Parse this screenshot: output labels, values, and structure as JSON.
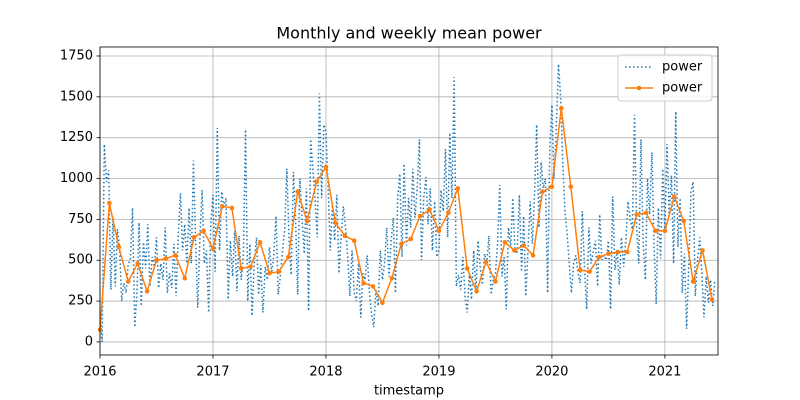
{
  "chart_data": {
    "type": "line",
    "title": "Monthly and weekly mean power",
    "x_label": "timestamp",
    "xlim": [
      2016,
      2021.47
    ],
    "xticks": [
      2016,
      2017,
      2018,
      2019,
      2020,
      2021
    ],
    "ylim": [
      -80,
      1805
    ],
    "yticks": [
      0,
      250,
      500,
      750,
      1000,
      1250,
      1500,
      1750
    ],
    "grid": true,
    "legend": "upper right",
    "series": [
      {
        "name": "power",
        "color": "#1f77b4",
        "linestyle": "dotted",
        "x": [
          2016,
          2016.019,
          2016.038,
          2016.058,
          2016.077,
          2016.096,
          2016.115,
          2016.135,
          2016.154,
          2016.173,
          2016.192,
          2016.212,
          2016.231,
          2016.25,
          2016.269,
          2016.288,
          2016.308,
          2016.327,
          2016.346,
          2016.365,
          2016.385,
          2016.404,
          2016.423,
          2016.442,
          2016.462,
          2016.481,
          2016.5,
          2016.519,
          2016.538,
          2016.558,
          2016.577,
          2016.596,
          2016.615,
          2016.635,
          2016.654,
          2016.673,
          2016.692,
          2016.712,
          2016.731,
          2016.75,
          2016.769,
          2016.788,
          2016.808,
          2016.827,
          2016.846,
          2016.865,
          2016.885,
          2016.904,
          2016.923,
          2016.942,
          2016.962,
          2016.981,
          2017,
          2017.019,
          2017.038,
          2017.058,
          2017.077,
          2017.096,
          2017.115,
          2017.135,
          2017.154,
          2017.173,
          2017.192,
          2017.212,
          2017.231,
          2017.25,
          2017.269,
          2017.288,
          2017.308,
          2017.327,
          2017.346,
          2017.365,
          2017.385,
          2017.404,
          2017.423,
          2017.442,
          2017.462,
          2017.481,
          2017.5,
          2017.519,
          2017.538,
          2017.558,
          2017.577,
          2017.596,
          2017.615,
          2017.635,
          2017.654,
          2017.673,
          2017.692,
          2017.712,
          2017.731,
          2017.75,
          2017.769,
          2017.788,
          2017.808,
          2017.827,
          2017.846,
          2017.865,
          2017.885,
          2017.904,
          2017.923,
          2017.942,
          2017.962,
          2017.981,
          2018,
          2018.019,
          2018.038,
          2018.058,
          2018.077,
          2018.096,
          2018.115,
          2018.135,
          2018.154,
          2018.173,
          2018.192,
          2018.212,
          2018.231,
          2018.25,
          2018.269,
          2018.288,
          2018.308,
          2018.327,
          2018.346,
          2018.365,
          2018.385,
          2018.404,
          2018.423,
          2018.442,
          2018.462,
          2018.481,
          2018.5,
          2018.519,
          2018.538,
          2018.558,
          2018.577,
          2018.596,
          2018.615,
          2018.635,
          2018.654,
          2018.673,
          2018.692,
          2018.712,
          2018.731,
          2018.75,
          2018.769,
          2018.788,
          2018.808,
          2018.827,
          2018.846,
          2018.865,
          2018.885,
          2018.904,
          2018.923,
          2018.942,
          2018.962,
          2018.981,
          2019,
          2019.019,
          2019.038,
          2019.058,
          2019.077,
          2019.096,
          2019.115,
          2019.135,
          2019.154,
          2019.173,
          2019.192,
          2019.212,
          2019.231,
          2019.25,
          2019.269,
          2019.288,
          2019.308,
          2019.327,
          2019.346,
          2019.365,
          2019.385,
          2019.404,
          2019.423,
          2019.442,
          2019.462,
          2019.481,
          2019.5,
          2019.519,
          2019.538,
          2019.558,
          2019.577,
          2019.596,
          2019.615,
          2019.635,
          2019.654,
          2019.673,
          2019.692,
          2019.712,
          2019.731,
          2019.75,
          2019.769,
          2019.788,
          2019.808,
          2019.827,
          2019.846,
          2019.865,
          2019.885,
          2019.904,
          2019.923,
          2019.942,
          2019.962,
          2019.981,
          2020,
          2020.019,
          2020.038,
          2020.058,
          2020.077,
          2020.096,
          2020.115,
          2020.135,
          2020.154,
          2020.173,
          2020.192,
          2020.212,
          2020.231,
          2020.25,
          2020.269,
          2020.288,
          2020.308,
          2020.327,
          2020.346,
          2020.365,
          2020.385,
          2020.404,
          2020.423,
          2020.442,
          2020.462,
          2020.481,
          2020.5,
          2020.519,
          2020.538,
          2020.558,
          2020.577,
          2020.596,
          2020.615,
          2020.635,
          2020.654,
          2020.673,
          2020.692,
          2020.712,
          2020.731,
          2020.75,
          2020.769,
          2020.788,
          2020.808,
          2020.827,
          2020.846,
          2020.865,
          2020.885,
          2020.904,
          2020.923,
          2020.942,
          2020.962,
          2020.981,
          2021,
          2021.019,
          2021.038,
          2021.058,
          2021.077,
          2021.096,
          2021.115,
          2021.135,
          2021.154,
          2021.173,
          2021.192,
          2021.212,
          2021.231,
          2021.25,
          2021.269,
          2021.288,
          2021.308,
          2021.327,
          2021.346,
          2021.365,
          2021.385,
          2021.404,
          2021.423,
          2021.442
        ],
        "values": [
          180,
          0,
          1210,
          980,
          1050,
          320,
          760,
          340,
          690,
          580,
          250,
          360,
          300,
          480,
          500,
          820,
          90,
          300,
          730,
          220,
          610,
          450,
          720,
          340,
          520,
          460,
          640,
          330,
          480,
          380,
          700,
          300,
          420,
          330,
          600,
          280,
          640,
          910,
          560,
          720,
          480,
          820,
          480,
          1110,
          620,
          210,
          650,
          930,
          480,
          560,
          180,
          730,
          900,
          430,
          1310,
          560,
          920,
          830,
          880,
          260,
          620,
          400,
          680,
          310,
          650,
          380,
          530,
          1300,
          250,
          600,
          160,
          480,
          640,
          290,
          470,
          180,
          460,
          380,
          580,
          420,
          530,
          770,
          290,
          400,
          550,
          690,
          1060,
          630,
          410,
          1040,
          750,
          290,
          1000,
          760,
          540,
          940,
          190,
          1240,
          1050,
          870,
          640,
          1520,
          880,
          1330,
          1290,
          950,
          560,
          850,
          620,
          900,
          420,
          650,
          830,
          700,
          530,
          280,
          560,
          300,
          250,
          480,
          150,
          420,
          380,
          530,
          300,
          170,
          90,
          320,
          220,
          560,
          380,
          480,
          700,
          400,
          620,
          760,
          300,
          880,
          1030,
          520,
          1090,
          590,
          880,
          700,
          1060,
          760,
          950,
          1240,
          500,
          880,
          1010,
          720,
          940,
          560,
          860,
          520,
          560,
          930,
          800,
          1180,
          640,
          1280,
          880,
          1620,
          340,
          410,
          320,
          520,
          280,
          180,
          420,
          260,
          560,
          300,
          620,
          460,
          350,
          540,
          480,
          650,
          290,
          380,
          420,
          600,
          960,
          400,
          520,
          200,
          700,
          580,
          880,
          560,
          540,
          900,
          430,
          770,
          280,
          560,
          860,
          600,
          900,
          1330,
          700,
          1100,
          940,
          1000,
          300,
          1180,
          1450,
          1000,
          1300,
          1700,
          1500,
          1100,
          800,
          660,
          470,
          300,
          480,
          530,
          420,
          360,
          800,
          450,
          200,
          700,
          480,
          550,
          620,
          340,
          780,
          500,
          530,
          500,
          620,
          200,
          890,
          440,
          560,
          350,
          640,
          460,
          620,
          860,
          750,
          690,
          1390,
          700,
          480,
          1240,
          600,
          380,
          1000,
          780,
          1160,
          590,
          230,
          820,
          510,
          1060,
          690,
          1210,
          780,
          1020,
          480,
          1410,
          580,
          880,
          300,
          540,
          80,
          480,
          920,
          980,
          280,
          500,
          640,
          420,
          150,
          400,
          240,
          380,
          220,
          380
        ]
      },
      {
        "name": "power",
        "color": "#ff7f0e",
        "linestyle": "solid",
        "marker": "o",
        "x": [
          2016,
          2016.083,
          2016.167,
          2016.25,
          2016.333,
          2016.417,
          2016.5,
          2016.583,
          2016.667,
          2016.75,
          2016.833,
          2016.917,
          2017,
          2017.083,
          2017.167,
          2017.25,
          2017.333,
          2017.417,
          2017.5,
          2017.583,
          2017.667,
          2017.75,
          2017.833,
          2017.917,
          2018,
          2018.083,
          2018.167,
          2018.25,
          2018.333,
          2018.417,
          2018.5,
          2018.583,
          2018.667,
          2018.75,
          2018.833,
          2018.917,
          2019,
          2019.083,
          2019.167,
          2019.25,
          2019.333,
          2019.417,
          2019.5,
          2019.583,
          2019.667,
          2019.75,
          2019.833,
          2019.917,
          2020,
          2020.083,
          2020.167,
          2020.25,
          2020.333,
          2020.417,
          2020.5,
          2020.583,
          2020.667,
          2020.75,
          2020.833,
          2020.917,
          2021,
          2021.083,
          2021.167,
          2021.25,
          2021.333,
          2021.417
        ],
        "values": [
          75,
          850,
          580,
          370,
          480,
          310,
          500,
          510,
          530,
          390,
          640,
          680,
          570,
          830,
          820,
          450,
          460,
          610,
          420,
          430,
          520,
          920,
          740,
          980,
          1070,
          730,
          650,
          620,
          360,
          340,
          240,
          390,
          600,
          630,
          770,
          810,
          680,
          790,
          940,
          450,
          310,
          490,
          370,
          610,
          560,
          590,
          530,
          920,
          950,
          1430,
          950,
          440,
          430,
          520,
          540,
          550,
          550,
          780,
          790,
          680,
          680,
          890,
          740,
          370,
          560,
          260
        ]
      }
    ]
  }
}
